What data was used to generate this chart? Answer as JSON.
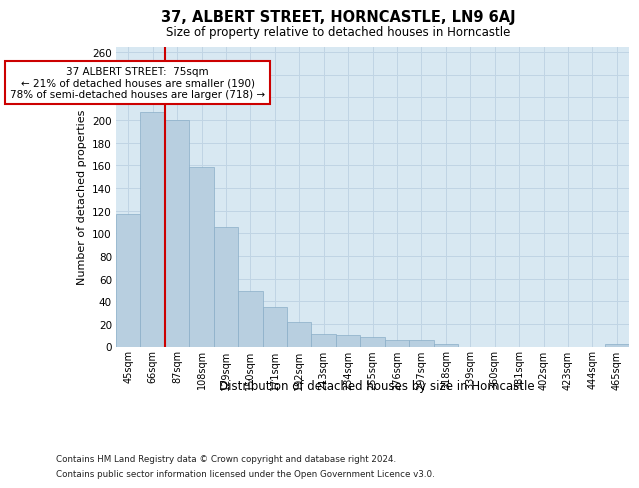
{
  "title": "37, ALBERT STREET, HORNCASTLE, LN9 6AJ",
  "subtitle": "Size of property relative to detached houses in Horncastle",
  "xlabel": "Distribution of detached houses by size in Horncastle",
  "ylabel": "Number of detached properties",
  "categories": [
    "45sqm",
    "66sqm",
    "87sqm",
    "108sqm",
    "129sqm",
    "150sqm",
    "171sqm",
    "192sqm",
    "213sqm",
    "234sqm",
    "255sqm",
    "276sqm",
    "297sqm",
    "318sqm",
    "339sqm",
    "360sqm",
    "381sqm",
    "402sqm",
    "423sqm",
    "444sqm",
    "465sqm"
  ],
  "values": [
    117,
    207,
    200,
    159,
    106,
    49,
    35,
    22,
    11,
    10,
    8,
    6,
    6,
    2,
    0,
    0,
    0,
    0,
    0,
    0,
    2
  ],
  "bar_color": "#b8cfe0",
  "bar_edge_color": "#8aaec8",
  "grid_color": "#c0d4e4",
  "background_color": "#d8e8f2",
  "vline_color": "#cc0000",
  "annotation_box_color": "#cc0000",
  "ylim": [
    0,
    265
  ],
  "yticks": [
    0,
    20,
    40,
    60,
    80,
    100,
    120,
    140,
    160,
    180,
    200,
    220,
    240,
    260
  ],
  "annotation_text": "37 ALBERT STREET:  75sqm\n← 21% of detached houses are smaller (190)\n78% of semi-detached houses are larger (718) →",
  "footer_line1": "Contains HM Land Registry data © Crown copyright and database right 2024.",
  "footer_line2": "Contains public sector information licensed under the Open Government Licence v3.0."
}
